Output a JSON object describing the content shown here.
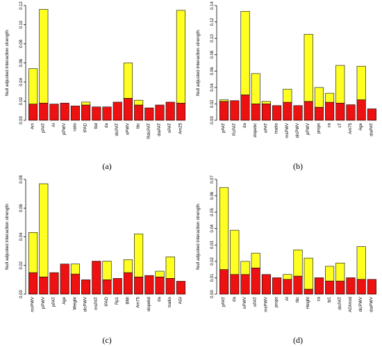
{
  "colors": {
    "bar_bottom": "#ee1111",
    "bar_top": "#ffff22",
    "edge": "#000000"
  },
  "chart_data": [
    {
      "type": "bar",
      "panel": "a",
      "caption": "(a)",
      "ylabel": "Null adjusted interaction strength",
      "ylim": [
        0,
        0.12
      ],
      "yticks": [
        "0.00",
        "0.02",
        "0.04",
        "0.06",
        "0.08",
        "0.10",
        "0.12"
      ],
      "categories": [
        "Am",
        "pPAT",
        "AI",
        "pPWV",
        "ratio",
        "tPAD",
        "tbd",
        "da",
        "dicPAT",
        "oPWV",
        "tbc",
        "RdicPAT",
        "diaPAT",
        "oPAT",
        "Am25"
      ],
      "series": [
        {
          "color": "red",
          "values": [
            0.017,
            0.018,
            0.017,
            0.018,
            0.015,
            0.016,
            0.014,
            0.014,
            0.019,
            0.023,
            0.016,
            0.013,
            0.016,
            0.019,
            0.018
          ]
        },
        {
          "color": "yellow",
          "values": [
            0.037,
            0.098,
            0,
            0,
            0,
            0.003,
            0,
            0,
            0,
            0.037,
            0.005,
            0,
            0,
            0,
            0.097
          ]
        }
      ]
    },
    {
      "type": "bar",
      "panel": "b",
      "caption": "(b)",
      "ylabel": "Null adjusted interaction strength",
      "ylim": [
        0,
        0.14
      ],
      "yticks": [
        "0.00",
        "0.02",
        "0.04",
        "0.06",
        "0.08",
        "0.10",
        "0.12",
        "0.14"
      ],
      "categories": [
        "pPAT",
        "RcPAT",
        "da",
        "slopebc",
        "oPAT",
        "tradio",
        "msPWV",
        "dicPWV",
        "pPWV",
        "props",
        "ca",
        "cT",
        "Am75",
        "Age",
        "diaPAT"
      ],
      "series": [
        {
          "color": "red",
          "values": [
            0.023,
            0.024,
            0.031,
            0.02,
            0.02,
            0.018,
            0.022,
            0.018,
            0.023,
            0.016,
            0.022,
            0.021,
            0.019,
            0.025,
            0.014
          ]
        },
        {
          "color": "yellow",
          "values": [
            0.002,
            0,
            0.102,
            0.037,
            0.003,
            0,
            0.016,
            0,
            0.082,
            0.024,
            0.011,
            0.046,
            0,
            0.041,
            0
          ]
        }
      ]
    },
    {
      "type": "bar",
      "panel": "c",
      "caption": "(c)",
      "ylabel": "Null adjusted interaction strength",
      "ylim": [
        0,
        0.08
      ],
      "yticks": [
        "0.00",
        "0.02",
        "0.04",
        "0.06",
        "0.08"
      ],
      "categories": [
        "msPWV",
        "pPWV",
        "pPAT",
        "Age",
        "Weight",
        "dicPWV",
        "msPAT",
        "tPAD",
        "Rp1",
        "BMI",
        "Am75",
        "slopebd",
        "da",
        "tradio",
        "AGI"
      ],
      "series": [
        {
          "color": "red",
          "values": [
            0.015,
            0.012,
            0.015,
            0.021,
            0.014,
            0.01,
            0.023,
            0.01,
            0.011,
            0.015,
            0.012,
            0.013,
            0.012,
            0.011,
            0.009
          ]
        },
        {
          "color": "yellow",
          "values": [
            0.028,
            0.065,
            0,
            0,
            0.007,
            0,
            0,
            0.013,
            0,
            0.009,
            0.03,
            0,
            0.004,
            0.015,
            0
          ]
        }
      ]
    },
    {
      "type": "bar",
      "panel": "d",
      "caption": "(d)",
      "ylabel": "Null adjusted interaction strength",
      "ylim": [
        0,
        0.07
      ],
      "yticks": [
        "0.00",
        "0.01",
        "0.02",
        "0.03",
        "0.04",
        "0.05",
        "0.06",
        "0.07"
      ],
      "categories": [
        "pPAT",
        "da",
        "oPWV",
        "oPAT",
        "msPWV",
        "props",
        "AI",
        "tbc",
        "Height",
        "ca",
        "tp1",
        "dicPAT",
        "AGImod",
        "dicPWV",
        "diaPWV"
      ],
      "series": [
        {
          "color": "red",
          "values": [
            0.015,
            0.012,
            0.012,
            0.016,
            0.012,
            0.01,
            0.009,
            0.011,
            0.003,
            0.01,
            0.008,
            0.008,
            0.01,
            0.009,
            0.009
          ]
        },
        {
          "color": "yellow",
          "values": [
            0.05,
            0.027,
            0.008,
            0.009,
            0,
            0,
            0.003,
            0.016,
            0.019,
            0,
            0.009,
            0.011,
            0,
            0.02,
            0
          ]
        }
      ]
    }
  ]
}
